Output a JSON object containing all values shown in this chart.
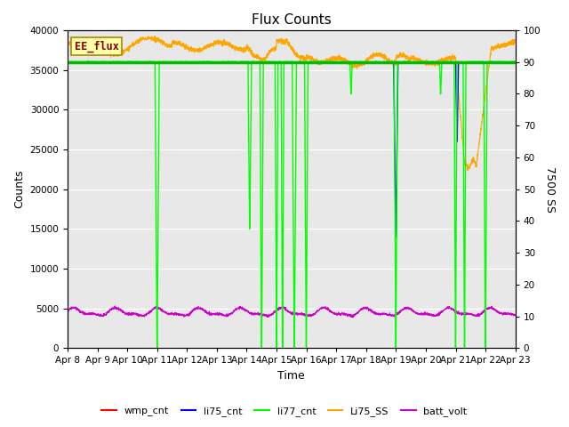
{
  "title": "Flux Counts",
  "xlabel": "Time",
  "ylabel_left": "Counts",
  "ylabel_right": "7500 SS",
  "plot_bg_color": "#e8e8e8",
  "xlim_days": [
    0,
    15
  ],
  "ylim_left": [
    0,
    40000
  ],
  "ylim_right": [
    0,
    100
  ],
  "x_tick_labels": [
    "Apr 8",
    "Apr 9",
    "Apr 10",
    "Apr 11",
    "Apr 12",
    "Apr 13",
    "Apr 14",
    "Apr 15",
    "Apr 16",
    "Apr 17",
    "Apr 18",
    "Apr 19",
    "Apr 20",
    "Apr 21",
    "Apr 22",
    "Apr 23"
  ],
  "yticks_left": [
    0,
    5000,
    10000,
    15000,
    20000,
    25000,
    30000,
    35000,
    40000
  ],
  "yticks_right": [
    0,
    10,
    20,
    30,
    40,
    50,
    60,
    70,
    80,
    90,
    100
  ],
  "colors": {
    "wmp_cnt": "#ff0000",
    "li75_cnt": "#0000ff",
    "li77_cnt": "#00ff00",
    "Li75_SS": "#ffa500",
    "batt_volt": "#cc00cc",
    "EE_flux_line": "#00bb00",
    "EE_flux_fill": "#ffffaa"
  },
  "EE_flux_label_color": "#880000",
  "EE_flux_value": 36000,
  "legend_entries": [
    "wmp_cnt",
    "li75_cnt",
    "li77_cnt",
    "Li75_SS",
    "batt_volt"
  ]
}
